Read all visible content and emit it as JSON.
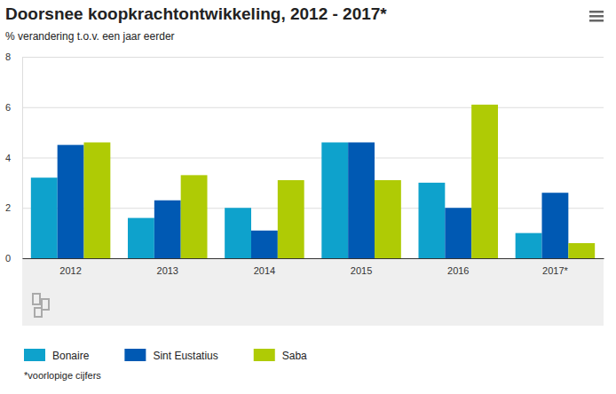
{
  "chart_data": {
    "type": "bar",
    "title": "Doorsnee koopkrachtontwikkeling, 2012 - 2017*",
    "subtitle": "% verandering t.o.v. een jaar eerder",
    "categories": [
      "2012",
      "2013",
      "2014",
      "2015",
      "2016",
      "2017*"
    ],
    "series": [
      {
        "name": "Bonaire",
        "color": "#0ea2cc",
        "values": [
          3.2,
          1.6,
          2.0,
          4.6,
          3.0,
          1.0
        ]
      },
      {
        "name": "Sint Eustatius",
        "color": "#0059b3",
        "values": [
          4.5,
          2.3,
          1.1,
          4.6,
          2.0,
          2.6
        ]
      },
      {
        "name": "Saba",
        "color": "#afcb05",
        "values": [
          4.6,
          3.3,
          3.1,
          3.1,
          6.1,
          0.6
        ]
      }
    ],
    "ylim": [
      0,
      8
    ],
    "yticks": [
      0,
      2,
      4,
      6,
      8
    ],
    "grid": true,
    "legend": "bottom",
    "annotations": [
      "*voorlopige cijfers"
    ]
  }
}
